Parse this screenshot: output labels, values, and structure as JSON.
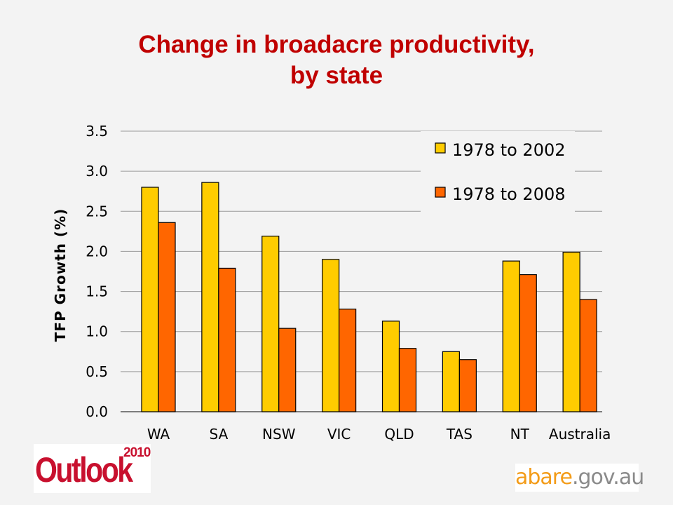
{
  "title": {
    "line1": "Change in broadacre productivity,",
    "line2": "by state"
  },
  "chart_data": {
    "type": "bar",
    "categories": [
      "WA",
      "SA",
      "NSW",
      "VIC",
      "QLD",
      "TAS",
      "NT",
      "Australia"
    ],
    "series": [
      {
        "name": "1978 to 2002",
        "color": "#ffcc00",
        "values": [
          2.8,
          2.86,
          2.19,
          1.9,
          1.13,
          0.75,
          1.88,
          1.99
        ]
      },
      {
        "name": "1978 to 2008",
        "color": "#ff6600",
        "values": [
          2.36,
          1.79,
          1.04,
          1.28,
          0.79,
          0.65,
          1.71,
          1.4
        ]
      }
    ],
    "ylabel": "TFP Growth (%)",
    "ylim": [
      0,
      3.5
    ],
    "yticks": [
      "0.0",
      "0.5",
      "1.0",
      "1.5",
      "2.0",
      "2.5",
      "3.0",
      "3.5"
    ],
    "grid": true,
    "legend_position": "top-right"
  },
  "logos": {
    "outlook_word": "Outlook",
    "outlook_year": "2010",
    "abare_part1": "abare",
    "abare_part2": ".gov.au"
  }
}
